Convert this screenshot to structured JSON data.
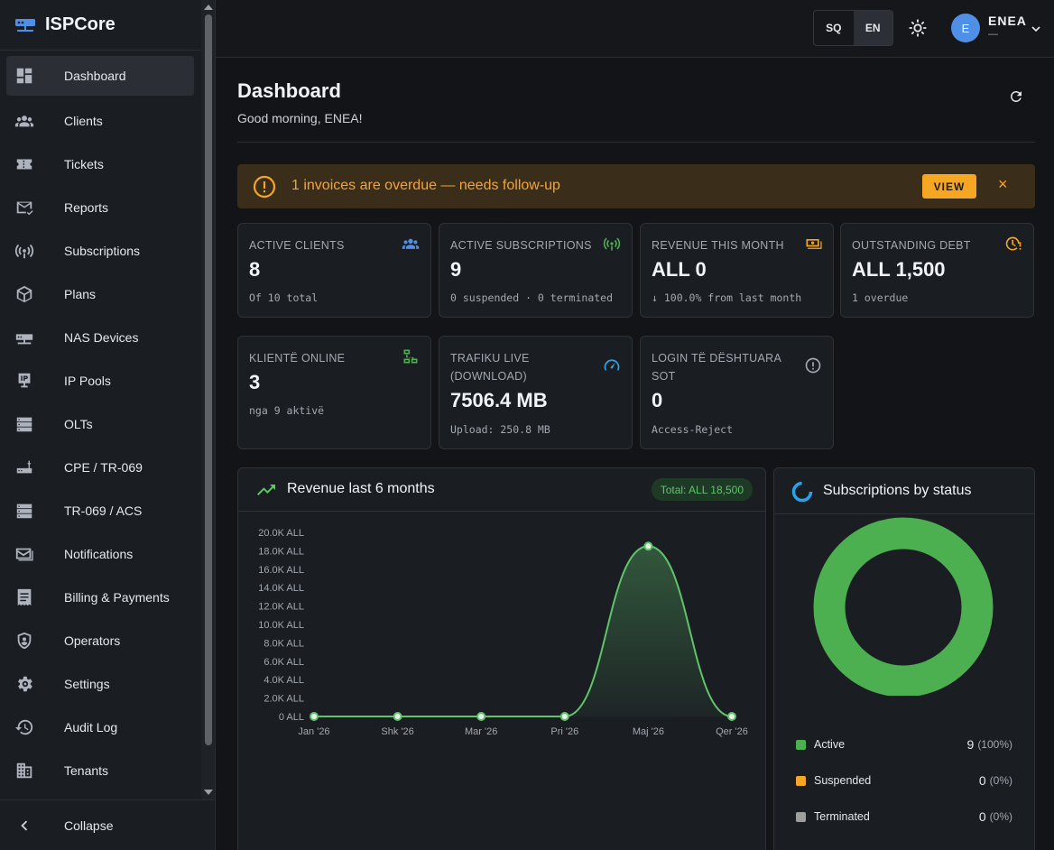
{
  "app": {
    "name": "ISPCore"
  },
  "sidebar": {
    "items": [
      {
        "label": "Dashboard",
        "icon": "dashboard-icon",
        "active": true
      },
      {
        "label": "Clients",
        "icon": "users-icon"
      },
      {
        "label": "Tickets",
        "icon": "ticket-icon"
      },
      {
        "label": "Reports",
        "icon": "report-mail-icon"
      },
      {
        "label": "Subscriptions",
        "icon": "antenna-icon"
      },
      {
        "label": "Plans",
        "icon": "box-icon"
      },
      {
        "label": "NAS Devices",
        "icon": "router-icon"
      },
      {
        "label": "IP Pools",
        "icon": "ip-icon"
      },
      {
        "label": "OLTs",
        "icon": "server-icon"
      },
      {
        "label": "CPE / TR-069",
        "icon": "cpe-icon"
      },
      {
        "label": "TR-069 / ACS",
        "icon": "server-icon"
      },
      {
        "label": "Notifications",
        "icon": "mail-icon"
      },
      {
        "label": "Billing & Payments",
        "icon": "receipt-icon"
      },
      {
        "label": "Operators",
        "icon": "shield-user-icon"
      },
      {
        "label": "Settings",
        "icon": "gear-icon"
      },
      {
        "label": "Audit Log",
        "icon": "history-icon"
      },
      {
        "label": "Tenants",
        "icon": "building-icon"
      }
    ],
    "collapse_label": "Collapse"
  },
  "topbar": {
    "lang_options": [
      "SQ",
      "EN"
    ],
    "lang_selected": "EN",
    "user_initial": "E",
    "user_name": "ENEA",
    "user_role": "—"
  },
  "page": {
    "title": "Dashboard",
    "greeting": "Good morning, ENEA!"
  },
  "alert": {
    "text": "1 invoices are overdue — needs follow-up",
    "action": "VIEW",
    "close": "×"
  },
  "cards": [
    {
      "label": "ACTIVE CLIENTS",
      "value": "8",
      "sub": "Of 10 total",
      "icon": "users-icon",
      "color": "#4f8fe6"
    },
    {
      "label": "ACTIVE SUBSCRIPTIONS",
      "value": "9",
      "sub": "0 suspended · 0 terminated",
      "icon": "antenna-icon",
      "color": "#4caf50"
    },
    {
      "label": "REVENUE THIS MONTH",
      "value": "ALL 0",
      "sub": "↓ 100.0% from last month",
      "icon": "cash-icon",
      "color": "#f5a623"
    },
    {
      "label": "OUTSTANDING DEBT",
      "value": "ALL 1,500",
      "sub": "1 overdue",
      "icon": "clock-alert-icon",
      "color": "#f5a623"
    },
    {
      "label": "KLIENTË ONLINE",
      "value": "3",
      "sub": "nga 9 aktivë",
      "icon": "network-icon",
      "color": "#4caf50"
    },
    {
      "label": "TRAFIKU LIVE (DOWNLOAD)",
      "value": "7506.4 MB",
      "sub": "Upload: 250.8 MB",
      "icon": "speedometer-icon",
      "color": "#29a3e8"
    },
    {
      "label": "LOGIN TË DËSHTUARA SOT",
      "value": "0",
      "sub": "Access-Reject",
      "icon": "alert-circle-icon",
      "color": "#a3a9b1"
    }
  ],
  "revenue_panel": {
    "title": "Revenue last 6 months",
    "total": "Total: ALL 18,500",
    "icon": "trending-up-icon"
  },
  "status_panel": {
    "title": "Subscriptions by status",
    "icon": "donut-icon",
    "legend": [
      {
        "name": "Active",
        "count": "9",
        "pct": "(100%)",
        "color": "#4caf50"
      },
      {
        "name": "Suspended",
        "count": "0",
        "pct": "(0%)",
        "color": "#f5a623"
      },
      {
        "name": "Terminated",
        "count": "0",
        "pct": "(0%)",
        "color": "#9e9e9e"
      }
    ]
  },
  "chart_data": [
    {
      "type": "area",
      "title": "Revenue last 6 months",
      "categories": [
        "Jan '26",
        "Shk '26",
        "Mar '26",
        "Pri '26",
        "Maj '26",
        "Qer '26"
      ],
      "values": [
        0,
        0,
        0,
        0,
        18500,
        0
      ],
      "yticks": [
        "0 ALL",
        "2.0K ALL",
        "4.0K ALL",
        "6.0K ALL",
        "8.0K ALL",
        "10.0K ALL",
        "12.0K ALL",
        "14.0K ALL",
        "16.0K ALL",
        "18.0K ALL",
        "20.0K ALL"
      ],
      "ylim": [
        0,
        20000
      ],
      "color": "#5fc46a"
    },
    {
      "type": "pie",
      "title": "Subscriptions by status",
      "labels": [
        "Active",
        "Suspended",
        "Terminated"
      ],
      "values": [
        9,
        0,
        0
      ],
      "colors": [
        "#4caf50",
        "#f5a623",
        "#9e9e9e"
      ]
    }
  ]
}
